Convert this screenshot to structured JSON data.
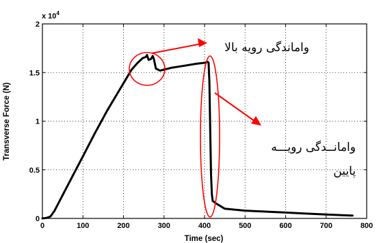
{
  "chart_data": {
    "type": "line",
    "xlabel": "Time (sec)",
    "ylabel": "Transverse Force (N)",
    "y_exponent_label": "x 10",
    "y_exponent_power": "4",
    "xlim": [
      0,
      800
    ],
    "ylim": [
      0,
      2
    ],
    "xticks": [
      0,
      100,
      200,
      300,
      400,
      500,
      600,
      700,
      800
    ],
    "yticks": [
      0,
      0.5,
      1,
      1.5,
      2
    ],
    "ytick_labels": [
      "0",
      "0.5",
      "1",
      "1.5",
      "2"
    ],
    "grid": true,
    "line_color": "#000000",
    "annotation_color": "#ff0000",
    "series": [
      {
        "x": [
          0,
          10,
          20,
          30,
          40,
          60,
          80,
          100,
          130,
          160,
          190,
          220,
          235,
          248,
          255,
          258,
          262,
          268,
          272,
          275,
          280,
          290,
          300,
          320,
          350,
          380,
          400,
          408,
          410,
          412,
          414,
          416,
          418,
          420,
          430,
          450,
          500,
          550,
          600,
          650,
          700,
          730,
          760,
          765
        ],
        "y": [
          0,
          0.005,
          0.02,
          0.08,
          0.16,
          0.32,
          0.48,
          0.64,
          0.88,
          1.11,
          1.32,
          1.53,
          1.6,
          1.65,
          1.66,
          1.68,
          1.63,
          1.64,
          1.67,
          1.64,
          1.54,
          1.52,
          1.53,
          1.55,
          1.57,
          1.59,
          1.6,
          1.61,
          1.6,
          1.4,
          0.9,
          0.45,
          0.25,
          0.18,
          0.15,
          0.1,
          0.08,
          0.07,
          0.06,
          0.05,
          0.04,
          0.035,
          0.03,
          0.03
        ]
      }
    ],
    "annotations": [
      {
        "text": "واماندگی رویه بالا"
      },
      {
        "text": "وامانــدگی رویـــه"
      },
      {
        "text": "پایین"
      }
    ]
  }
}
